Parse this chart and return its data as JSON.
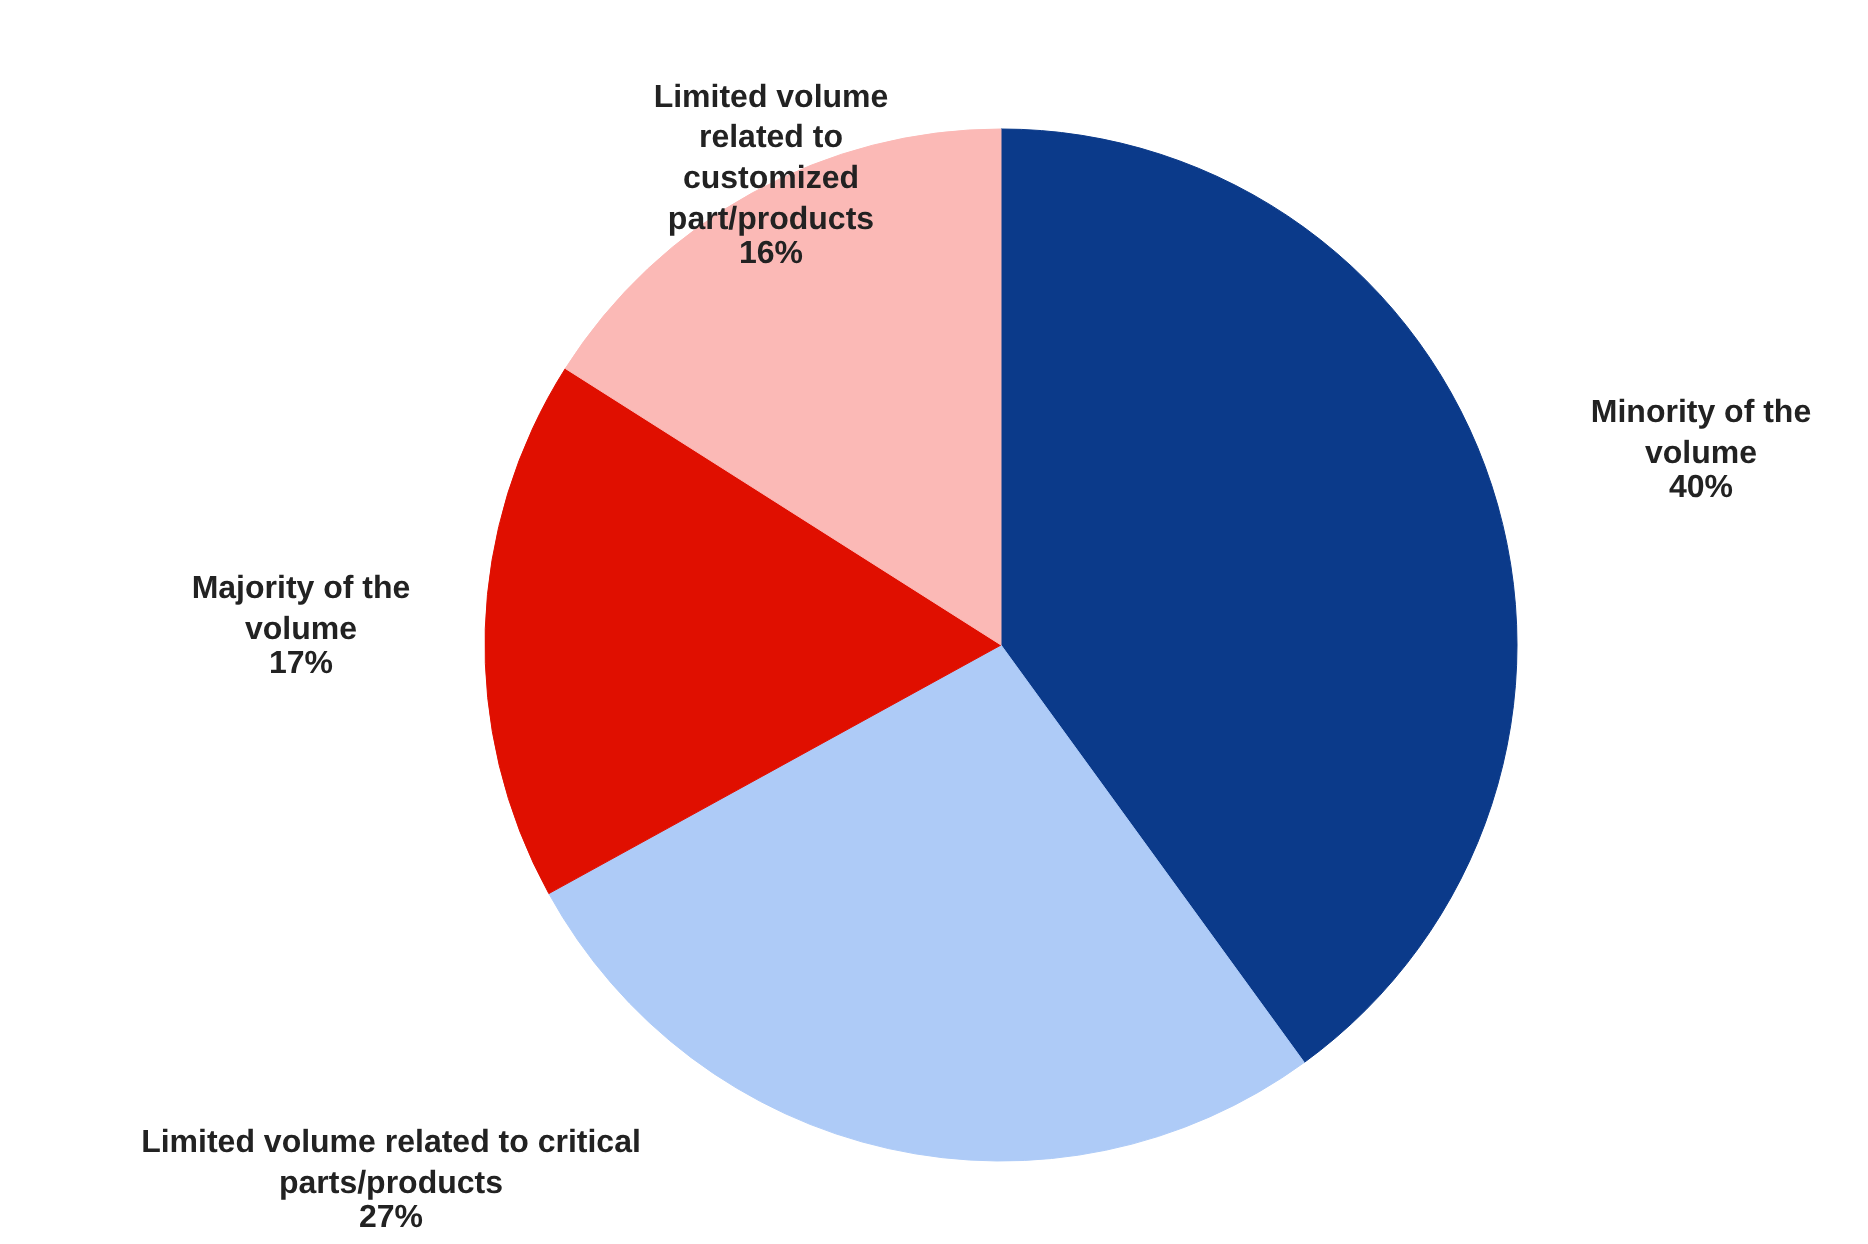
{
  "chart_data": {
    "type": "pie",
    "categories": [
      "Minority of the volume",
      "Limited volume related to critical parts/products",
      "Majority of the volume",
      "Limited volume related to customized part/products"
    ],
    "values": [
      40,
      27,
      17,
      16
    ],
    "colors": [
      "#0b3a8a",
      "#aecbf7",
      "#e00f00",
      "#fbb9b6"
    ],
    "value_labels": [
      "40%",
      "27%",
      "17%",
      "16%"
    ]
  }
}
